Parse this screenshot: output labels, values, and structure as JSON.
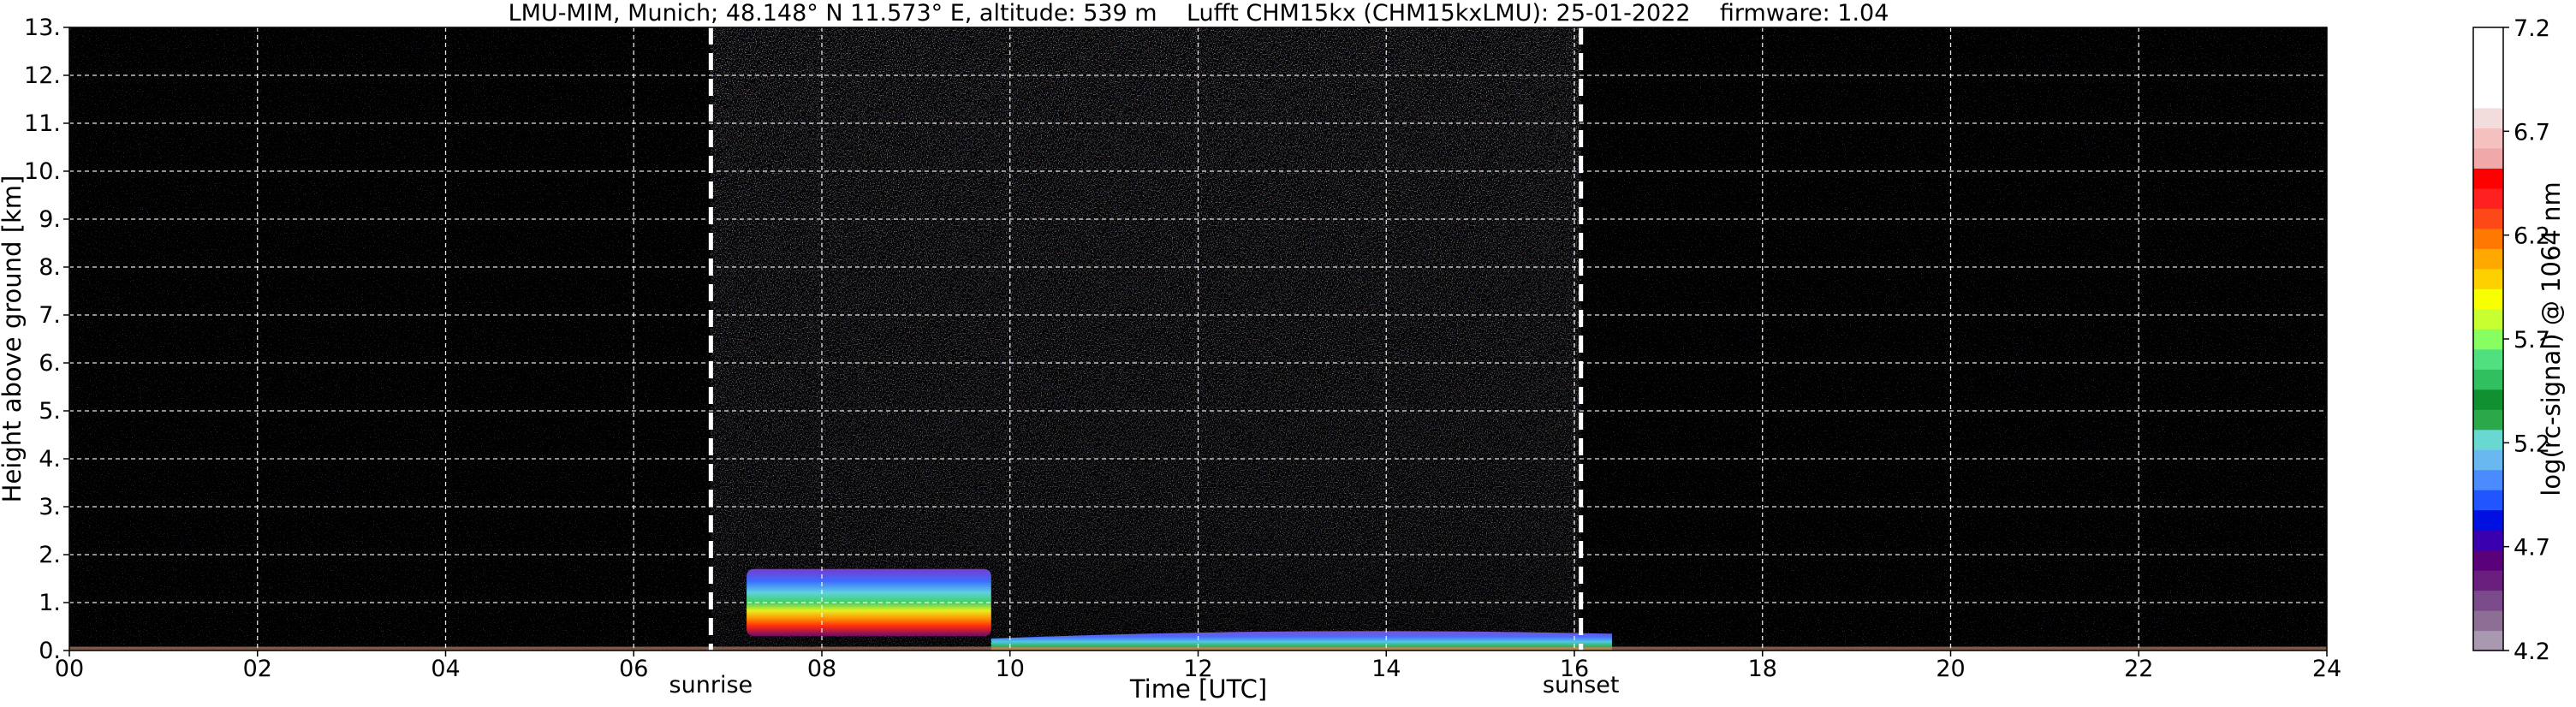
{
  "chart_data": {
    "type": "heatmap",
    "title": "LMU-MIM, Munich; 48.148° N 11.573° E, altitude: 539 m    Lufft CHM15kx (CHM15kxLMU): 25-01-2022    firmware: 1.04",
    "xlabel": "Time [UTC]",
    "ylabel": "Height above ground [km]",
    "xlim": [
      0,
      24
    ],
    "ylim": [
      0,
      13
    ],
    "x_ticks": [
      "00",
      "02",
      "04",
      "06",
      "08",
      "10",
      "12",
      "14",
      "16",
      "18",
      "20",
      "22",
      "24"
    ],
    "y_ticks": [
      "0.",
      "1.",
      "2.",
      "3.",
      "4.",
      "5.",
      "6.",
      "7.",
      "8.",
      "9.",
      "10.",
      "11.",
      "12.",
      "13."
    ],
    "grid": true,
    "colorbar": {
      "label": "log(rc-signal) @ 1064 nm",
      "range": [
        4.2,
        7.2
      ],
      "ticks": [
        "4.2",
        "4.7",
        "5.2",
        "5.7",
        "6.2",
        "6.7",
        "7.2"
      ],
      "colors": [
        "#a898b0",
        "#8d6f96",
        "#7a4a8a",
        "#6a1f7e",
        "#5a007a",
        "#3a00b0",
        "#0010e0",
        "#2055ff",
        "#4a8cff",
        "#6ab8f0",
        "#68d8d0",
        "#2aa84a",
        "#109030",
        "#30c060",
        "#50e080",
        "#88ff60",
        "#c8ff30",
        "#f8ff00",
        "#ffd000",
        "#ffa800",
        "#ff7800",
        "#ff4818",
        "#ff2020",
        "#ff0000",
        "#f0a8a8",
        "#f4c0c0",
        "#f2dcdc",
        "#ffffff",
        "#ffffff",
        "#ffffff",
        "#ffffff"
      ]
    },
    "annotations": [
      {
        "label": "sunrise",
        "x": 6.82
      },
      {
        "label": "sunset",
        "x": 16.07
      }
    ],
    "features": [
      {
        "kind": "aerosol-cloud layer",
        "x_range": [
          7.2,
          9.8
        ],
        "y_range": [
          0.3,
          1.7
        ],
        "log_signal_peak": 6.0
      },
      {
        "kind": "boundary layer",
        "x_range": [
          9.8,
          16.4
        ],
        "y_range": [
          0.0,
          0.5
        ],
        "log_signal_peak": 5.3
      }
    ]
  }
}
